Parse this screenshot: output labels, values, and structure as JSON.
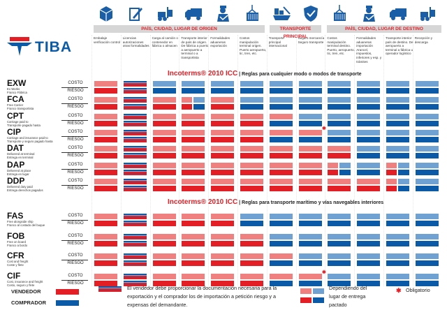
{
  "brand": {
    "name": "TIBA"
  },
  "colors": {
    "seller": "#e31e24",
    "seller_light": "#f08080",
    "buyer": "#0b5aa8",
    "buyer_light": "#6fa2d3",
    "header_band": "#d6d6d6"
  },
  "columns": [
    {
      "icon": "package-icon",
      "desc": "Embalaje verificación control"
    },
    {
      "icon": "license-document-icon",
      "desc": "Licencias autorizaciones otras formalidades"
    },
    {
      "icon": "forklift-icon",
      "desc": "Carga al camión o contenedor en fábrica o almacen"
    },
    {
      "icon": "truck-icon",
      "desc": "Transporte interior de país de origen. De fábrica a puerto a aeropuerto a terminal o a transportista"
    },
    {
      "icon": "customs-officer-icon",
      "desc": "Formalidades aduaneras exportación"
    },
    {
      "icon": "container-crane-icon",
      "desc": "Costos manipulación terminal origen. Puerto aeropuerto, tic, tren, etc."
    },
    {
      "icon": "ship-icon",
      "desc": "Transporte principal internacional"
    },
    {
      "icon": "insurance-shield-icon",
      "desc": "Seguro mercancía Seguro transporte"
    },
    {
      "icon": "container-crane-icon",
      "desc": "Costos manipulación terminal destino. Puerto, aeropuerto, tic, tren, etc."
    },
    {
      "icon": "customs-officer-icon",
      "desc": "Formalidades aduaneras importación Arancel, impuestos, inferiores y esp. y trámites"
    },
    {
      "icon": "truck-icon",
      "desc": "Transporte interior país de destino. De aeropuerto a terminal a fábrica u operador logístico"
    },
    {
      "icon": "forklift-icon",
      "desc": "Recepción y descarga"
    }
  ],
  "bands": {
    "origin": "PAÍS, CIUDAD, LUGAR DE ORIGEN",
    "main": "TRANSPORTE PRINCIPAL",
    "destination": "PAÍS, CIUDAD, LUGAR DE DESTINO"
  },
  "row_labels": {
    "cost": "COSTO",
    "risk": "RIESGO"
  },
  "groups": [
    {
      "title_main": "Incoterms® 2010 ICC",
      "title_sub": "| Reglas para cualquier modo o modos de transporte",
      "terms": [
        {
          "code": "EXW",
          "en": "Ex Works",
          "es": "Franco Fábrica",
          "costo": [
            "S",
            "X",
            "B",
            "B",
            "B",
            "B",
            "B",
            "B",
            "B",
            "B",
            "B",
            "B"
          ],
          "riesgo": [
            "S",
            "X",
            "B",
            "B",
            "B",
            "B",
            "B",
            "B",
            "B",
            "B",
            "B",
            "B"
          ]
        },
        {
          "code": "FCA",
          "en": "Free Carrier",
          "es": "Franco transportista",
          "costo": [
            "S",
            "X",
            "S",
            "H",
            "S",
            "B",
            "B",
            "B",
            "B",
            "B",
            "B",
            "B"
          ],
          "riesgo": [
            "S",
            "X",
            "S",
            "H",
            "S",
            "B",
            "B",
            "B",
            "B",
            "B",
            "B",
            "B"
          ]
        },
        {
          "code": "CPT",
          "en": "Carriage paid to",
          "es": "Transporte pagado hasta",
          "costo": [
            "S",
            "X",
            "S",
            "S",
            "S",
            "S",
            "S",
            "B",
            "B",
            "B",
            "B",
            "B"
          ],
          "riesgo": [
            "S",
            "X",
            "S",
            "S",
            "S",
            "S",
            "B",
            "B",
            "B",
            "B",
            "B",
            "B"
          ]
        },
        {
          "code": "CIP",
          "en": "Carriage and insurance paid to",
          "es": "Transporte y seguro pagado hasta",
          "costo": [
            "S",
            "X",
            "S",
            "S",
            "S",
            "S",
            "S",
            "S*",
            "B",
            "B",
            "B",
            "B"
          ],
          "riesgo": [
            "S",
            "X",
            "S",
            "S",
            "S",
            "S",
            "B",
            "B",
            "B",
            "B",
            "B",
            "B"
          ]
        },
        {
          "code": "DAT",
          "en": "Delivered at terminal",
          "es": "Entrega en terminal",
          "costo": [
            "S",
            "X",
            "S",
            "S",
            "S",
            "S",
            "S",
            "S",
            "S",
            "B",
            "B",
            "B"
          ],
          "riesgo": [
            "S",
            "X",
            "S",
            "S",
            "S",
            "S",
            "S",
            "S",
            "S",
            "B",
            "B",
            "B"
          ]
        },
        {
          "code": "DAP",
          "en": "Delivered at place",
          "es": "Entrega en lugar",
          "costo": [
            "S",
            "X",
            "S",
            "S",
            "S",
            "S",
            "S",
            "S",
            "H",
            "B",
            "H",
            "B"
          ],
          "riesgo": [
            "S",
            "X",
            "S",
            "S",
            "S",
            "S",
            "S",
            "S",
            "H",
            "B",
            "H",
            "B"
          ]
        },
        {
          "code": "DDP",
          "en": "Delivered duty paid",
          "es": "Entrega derechos pagados",
          "costo": [
            "S",
            "X",
            "S",
            "S",
            "S",
            "S",
            "S",
            "S",
            "S",
            "S",
            "H",
            "B"
          ],
          "riesgo": [
            "S",
            "X",
            "S",
            "S",
            "S",
            "S",
            "S",
            "S",
            "S",
            "S",
            "H",
            "B"
          ]
        }
      ]
    },
    {
      "title_main": "Incoterms® 2010 ICC",
      "title_sub": "| Reglas para transporte marítimo y vías navegables interiores",
      "terms": [
        {
          "code": "FAS",
          "en": "Free alongside ship",
          "es": "Franco al costado del buque",
          "costo": [
            "S",
            "X",
            "S",
            "S",
            "S",
            "B",
            "B",
            "B",
            "B",
            "B",
            "B",
            "B"
          ],
          "riesgo": [
            "S",
            "X",
            "S",
            "S",
            "S",
            "B",
            "B",
            "B",
            "B",
            "B",
            "B",
            "B"
          ]
        },
        {
          "code": "FOB",
          "en": "Free on board",
          "es": "Franco a bordo",
          "costo": [
            "S",
            "X",
            "S",
            "S",
            "S",
            "S",
            "B",
            "B",
            "B",
            "B",
            "B",
            "B"
          ],
          "riesgo": [
            "S",
            "X",
            "S",
            "S",
            "S",
            "S",
            "B",
            "B",
            "B",
            "B",
            "B",
            "B"
          ]
        },
        {
          "code": "CFR",
          "en": "Cost and freight",
          "es": "Coste y flete",
          "costo": [
            "S",
            "X",
            "S",
            "S",
            "S",
            "S",
            "S",
            "B",
            "B",
            "B",
            "B",
            "B"
          ],
          "riesgo": [
            "S",
            "X",
            "S",
            "S",
            "S",
            "S",
            "B",
            "B",
            "B",
            "B",
            "B",
            "B"
          ]
        },
        {
          "code": "CIF",
          "en": "Cost, insurance and freight",
          "es": "Costo, seguro y flete",
          "costo": [
            "S",
            "X",
            "S",
            "S",
            "S",
            "S",
            "S",
            "S*",
            "B",
            "B",
            "B",
            "B"
          ],
          "riesgo": [
            "S",
            "X",
            "S",
            "S",
            "S",
            "S",
            "B",
            "B",
            "B",
            "B",
            "B",
            "B"
          ]
        }
      ]
    }
  ],
  "legend": {
    "seller": "VENDEDOR",
    "buyer": "COMPRADOR",
    "mixed": "El vendedor debe proporcionar la documentación necesaria para la exportación y el comprador los de importación a petición riesgo y a expensas del demandante.",
    "depends": "Dependiendo del lugar de entrega pactado",
    "mandatory": "Obligatorio",
    "mandatory_symbol": "✱"
  }
}
